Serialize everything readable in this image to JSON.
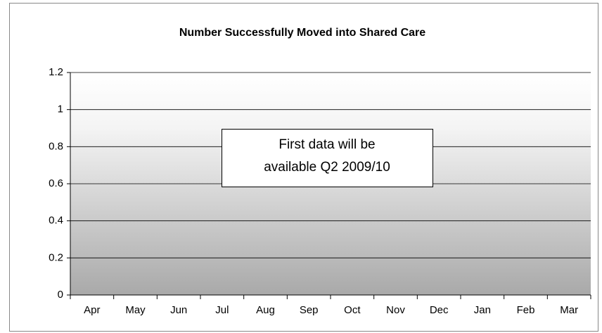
{
  "chart_data": {
    "type": "bar",
    "title": "Number Successfully Moved into Shared Care",
    "categories": [
      "Apr",
      "May",
      "Jun",
      "Jul",
      "Aug",
      "Sep",
      "Oct",
      "Nov",
      "Dec",
      "Jan",
      "Feb",
      "Mar"
    ],
    "ylim": [
      0,
      1.2
    ],
    "yticks": [
      0,
      0.2,
      0.4,
      0.6,
      0.8,
      1,
      1.2
    ],
    "grid": true,
    "annotation": [
      "First data will be",
      "available Q2 2009/10"
    ]
  }
}
